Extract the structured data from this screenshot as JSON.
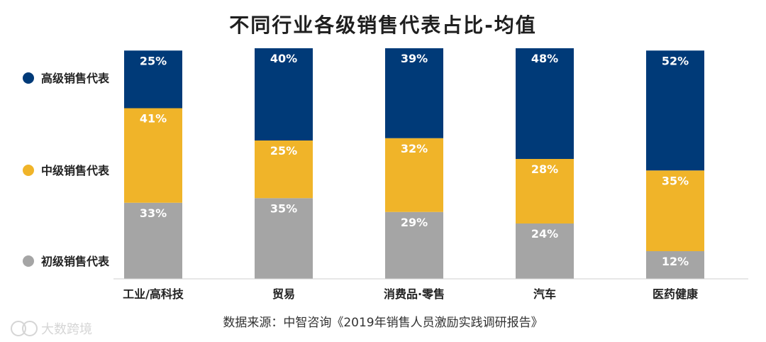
{
  "chart_data": {
    "type": "bar",
    "stacked": true,
    "title": "不同行业各级销售代表占比-均值",
    "categories": [
      "工业/高科技",
      "贸易",
      "消费品·零售",
      "汽车",
      "医药健康"
    ],
    "series": [
      {
        "name": "初级销售代表",
        "color": "#a5a5a5",
        "values": [
          33,
          35,
          29,
          24,
          12
        ],
        "labels": [
          "33%",
          "35%",
          "29%",
          "24%",
          "12%"
        ]
      },
      {
        "name": "中级销售代表",
        "color": "#f0b429",
        "values": [
          41,
          25,
          32,
          28,
          35
        ],
        "labels": [
          "41%",
          "25%",
          "32%",
          "28%",
          "35%"
        ]
      },
      {
        "name": "高级销售代表",
        "color": "#003a78",
        "values": [
          25,
          40,
          39,
          48,
          52
        ],
        "labels": [
          "25%",
          "40%",
          "39%",
          "48%",
          "52%"
        ]
      }
    ],
    "legend_position": "left",
    "grid": false
  },
  "source": "数据来源：中智咨询《2019年销售人员激励实践调研报告》",
  "watermark_text": "大数跨境"
}
